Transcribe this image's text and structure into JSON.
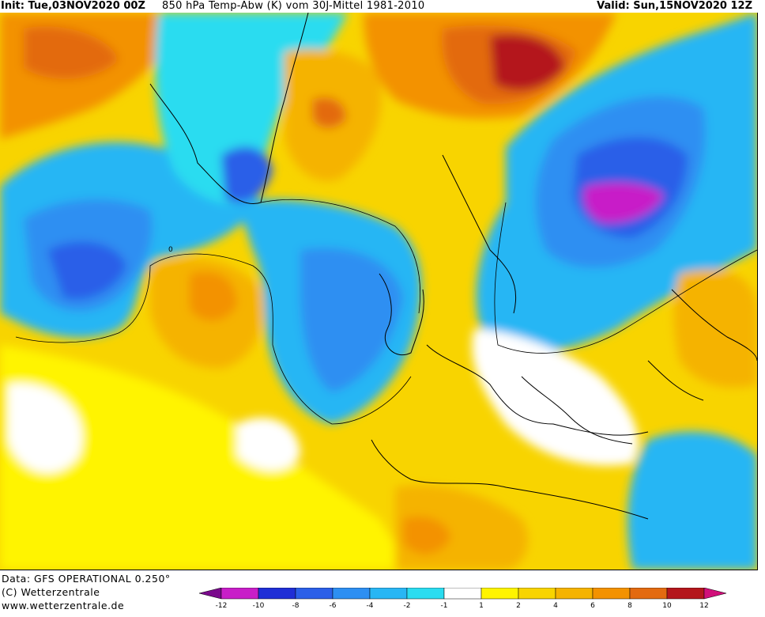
{
  "header": {
    "init": "Init: Tue,03NOV2020 00Z",
    "title": "850 hPa Temp-Abw (K) vom 30J-Mittel 1981-2010",
    "valid": "Valid: Sun,15NOV2020 12Z"
  },
  "footer": {
    "data_source": "Data: GFS OPERATIONAL 0.250°",
    "copyright": "(C) Wetterzentrale",
    "url": "www.wetterzentrale.de"
  },
  "legend": {
    "bins": [
      {
        "color": "#7a0a8c"
      },
      {
        "color": "#c81ec8"
      },
      {
        "color": "#1f2ed6"
      },
      {
        "color": "#2b5fe8"
      },
      {
        "color": "#2d8ff2"
      },
      {
        "color": "#28b6f4"
      },
      {
        "color": "#2adcf0"
      },
      {
        "color": "#ffffff"
      },
      {
        "color": "#fff400"
      },
      {
        "color": "#f8d400"
      },
      {
        "color": "#f5b300"
      },
      {
        "color": "#f39200"
      },
      {
        "color": "#e36a10"
      },
      {
        "color": "#b4161c"
      },
      {
        "color": "#d10f7a"
      }
    ],
    "ticks": [
      "-12",
      "-10",
      "-8",
      "-6",
      "-4",
      "-2",
      "-1",
      "1",
      "2",
      "4",
      "6",
      "8",
      "10",
      "12"
    ]
  },
  "map": {
    "contour_label": "0"
  }
}
